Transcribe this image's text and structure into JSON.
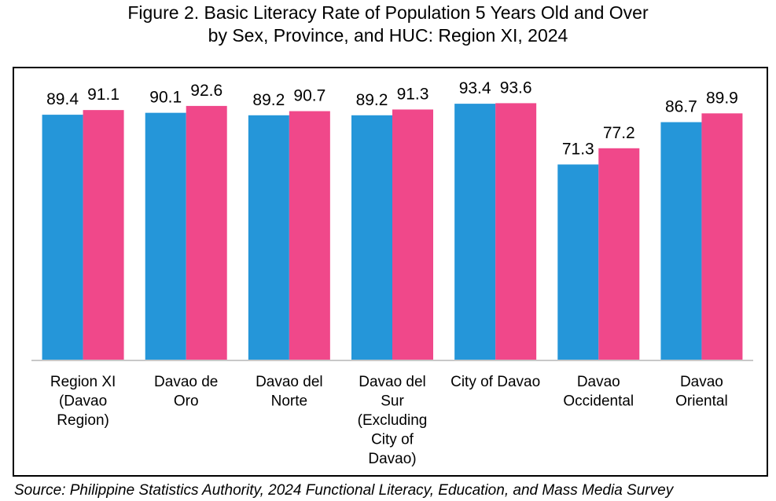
{
  "title": {
    "line1": "Figure 2. Basic Literacy Rate of Population 5 Years Old and Over",
    "line2": "by Sex, Province, and HUC: Region XI, 2024"
  },
  "source": "Source: Philippine Statistics Authority, 2024 Functional Literacy, Education, and Mass Media Survey",
  "colors": {
    "male": "#2596d9",
    "female": "#f0488a",
    "axis": "#c8c8c8"
  },
  "chart_data": {
    "type": "bar",
    "title": "Figure 2. Basic Literacy Rate of Population 5 Years Old and Over by Sex, Province, and HUC: Region XI, 2024",
    "categories": [
      [
        "Region XI",
        "(Davao",
        "Region)"
      ],
      [
        "Davao de",
        "Oro"
      ],
      [
        "Davao del",
        "Norte"
      ],
      [
        "Davao del",
        "Sur",
        "(Excluding",
        "City of",
        "Davao)"
      ],
      [
        "City of Davao"
      ],
      [
        "Davao",
        "Occidental"
      ],
      [
        "Davao",
        "Oriental"
      ]
    ],
    "series": [
      {
        "values": [
          89.4,
          90.1,
          89.2,
          89.2,
          93.4,
          71.3,
          86.7
        ]
      },
      {
        "values": [
          91.1,
          92.6,
          90.7,
          91.3,
          93.6,
          77.2,
          89.9
        ]
      }
    ],
    "ylim": [
      0,
      100
    ],
    "grid": false,
    "legend": "none"
  }
}
